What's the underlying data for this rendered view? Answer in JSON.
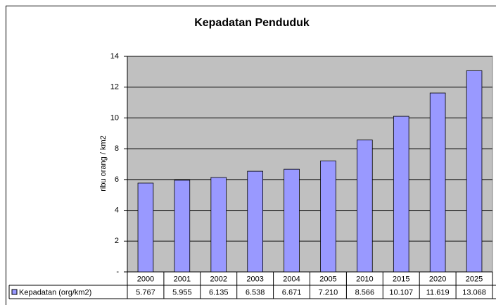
{
  "chart_data": {
    "type": "bar",
    "title": "Kepadatan Penduduk",
    "y_label": "ribu orang / km2",
    "categories": [
      "2000",
      "2001",
      "2002",
      "2003",
      "2004",
      "2005",
      "2010",
      "2015",
      "2020",
      "2025"
    ],
    "series": [
      {
        "name": "Kepadatan (org/km2)",
        "color": "#9999ff",
        "values": [
          5.767,
          5.955,
          6.135,
          6.538,
          6.671,
          7.21,
          8.566,
          10.107,
          11.619,
          13.068
        ],
        "value_labels": [
          "5.767",
          "5.955",
          "6.135",
          "6.538",
          "6.671",
          "7.210",
          "8.566",
          "10.107",
          "11.619",
          "13.068"
        ]
      }
    ],
    "ylim": [
      0,
      14
    ],
    "yticks": [
      {
        "value": 0,
        "label": "-"
      },
      2,
      4,
      6,
      8,
      10,
      12,
      14
    ],
    "grid": true
  }
}
